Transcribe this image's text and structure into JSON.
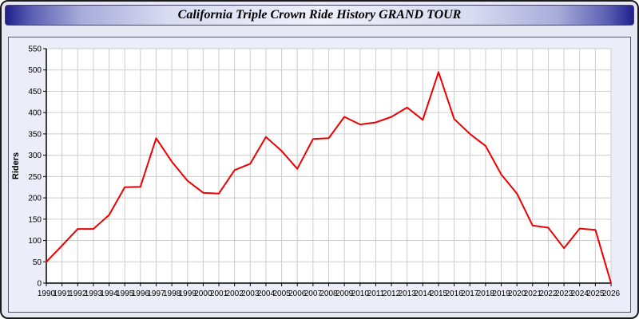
{
  "title": "California Triple Crown Ride History GRAND TOUR",
  "chart_data": {
    "type": "line",
    "title": "California Triple Crown Ride History GRAND TOUR",
    "xlabel": "",
    "ylabel": "Riders",
    "ylim": [
      0,
      550
    ],
    "ytick_step": 50,
    "grid": true,
    "legend": "none",
    "line_color": "#ee0000",
    "years": [
      1990,
      1991,
      1992,
      1993,
      1994,
      1995,
      1996,
      1997,
      1998,
      1999,
      2000,
      2001,
      2002,
      2003,
      2004,
      2005,
      2006,
      2007,
      2008,
      2009,
      2010,
      2011,
      2012,
      2013,
      2014,
      2015,
      2016,
      2017,
      2018,
      2019,
      2020,
      2021,
      2022,
      2023,
      2024,
      2025,
      2026
    ],
    "values": [
      50,
      88,
      127,
      127,
      160,
      225,
      226,
      340,
      285,
      240,
      212,
      210,
      265,
      280,
      343,
      310,
      268,
      338,
      340,
      390,
      372,
      377,
      390,
      412,
      383,
      495,
      385,
      350,
      322,
      255,
      210,
      135,
      130,
      82,
      128,
      125,
      0
    ]
  }
}
